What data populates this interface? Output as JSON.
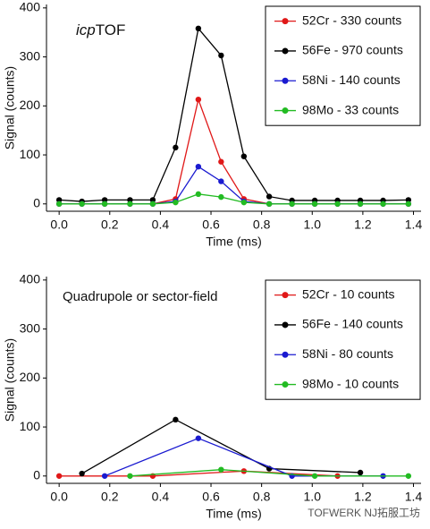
{
  "chart_data": [
    {
      "type": "line",
      "annotation_parts": [
        "icp",
        "TOF"
      ],
      "x_label": "Time (ms)",
      "y_label": "Signal (counts)",
      "x": [
        0,
        0.09,
        0.18,
        0.28,
        0.37,
        0.46,
        0.55,
        0.64,
        0.73,
        0.83,
        0.92,
        1.01,
        1.1,
        1.19,
        1.28,
        1.38
      ],
      "series": [
        {
          "name": "52Cr - 330 counts",
          "color": "#e01818",
          "values": [
            0,
            0,
            0,
            0,
            0,
            10,
            213,
            86,
            10,
            0,
            0,
            0,
            0,
            0,
            0,
            0
          ]
        },
        {
          "name": "56Fe - 970 counts",
          "color": "#000000",
          "values": [
            8,
            5,
            8,
            8,
            8,
            115,
            358,
            303,
            97,
            15,
            7,
            7,
            7,
            7,
            7,
            8
          ]
        },
        {
          "name": "58Ni - 140 counts",
          "color": "#1a1ad0",
          "values": [
            0,
            0,
            0,
            0,
            0,
            5,
            76,
            46,
            5,
            0,
            0,
            0,
            0,
            0,
            0,
            0
          ]
        },
        {
          "name": "98Mo - 33 counts",
          "color": "#22bb22",
          "values": [
            0,
            0,
            0,
            0,
            0,
            3,
            20,
            14,
            3,
            0,
            0,
            0,
            0,
            0,
            0,
            0
          ]
        }
      ],
      "xlim": [
        -0.05,
        1.43
      ],
      "ylim": [
        -15,
        407
      ],
      "xticks": [
        {
          "value": 0,
          "label": "0.0"
        },
        0.2,
        0.4,
        0.6,
        0.8,
        {
          "value": 1,
          "label": "1.0"
        },
        1.2,
        1.4
      ],
      "yticks": [
        0,
        100,
        200,
        300,
        400
      ],
      "legend": "upper right"
    },
    {
      "type": "line",
      "annotation_parts": [
        "Quadrupole or sector-field"
      ],
      "x_label": "Time (ms)",
      "y_label": "Signal (counts)",
      "series": [
        {
          "name": "52Cr - 10 counts",
          "color": "#e01818",
          "x": [
            0,
            0.37,
            0.73,
            1.1
          ],
          "values": [
            0,
            0,
            10,
            0
          ]
        },
        {
          "name": "56Fe - 140 counts",
          "color": "#000000",
          "x": [
            0.09,
            0.46,
            0.83,
            1.19
          ],
          "values": [
            5,
            115,
            15,
            7
          ]
        },
        {
          "name": "58Ni - 80 counts",
          "color": "#1a1ad0",
          "x": [
            0.18,
            0.55,
            0.92,
            1.28
          ],
          "values": [
            0,
            77,
            0,
            0
          ]
        },
        {
          "name": "98Mo - 10 counts",
          "color": "#22bb22",
          "x": [
            0.28,
            0.64,
            1.01,
            1.38
          ],
          "values": [
            0,
            13,
            0,
            0
          ]
        }
      ],
      "xlim": [
        -0.05,
        1.43
      ],
      "ylim": [
        -15,
        407
      ],
      "xticks": [
        {
          "value": 0,
          "label": "0.0"
        },
        0.2,
        0.4,
        0.6,
        0.8,
        {
          "value": 1,
          "label": "1.0"
        },
        1.2,
        1.4
      ],
      "yticks": [
        0,
        100,
        200,
        300,
        400
      ],
      "legend": "upper right"
    }
  ],
  "watermark": "TOFWERK NJ拓服工坊"
}
